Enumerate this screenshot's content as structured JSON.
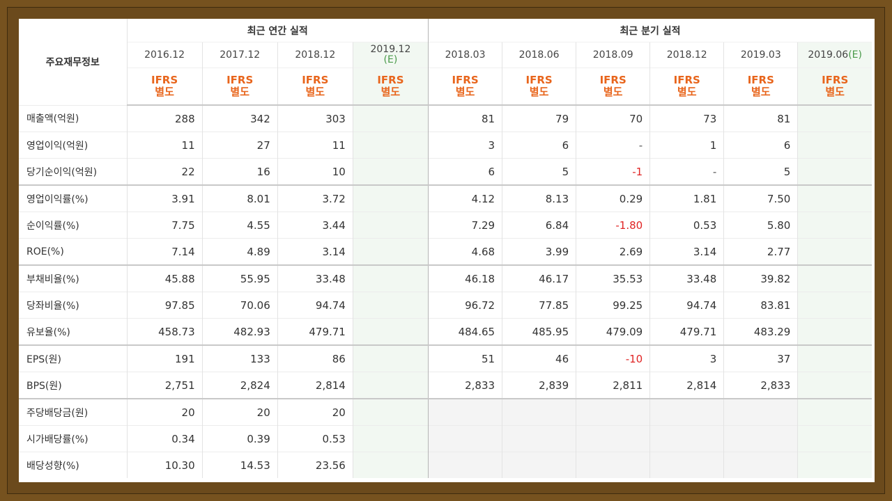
{
  "header": {
    "label_col": "주요재무정보",
    "annual_title": "최근 연간 실적",
    "quarterly_title": "최근 분기 실적",
    "annual_periods": [
      {
        "date": "2016.12",
        "est": ""
      },
      {
        "date": "2017.12",
        "est": ""
      },
      {
        "date": "2018.12",
        "est": ""
      },
      {
        "date": "2019.12",
        "est": "(E)"
      }
    ],
    "quarter_periods": [
      {
        "date": "2018.03",
        "est": ""
      },
      {
        "date": "2018.06",
        "est": ""
      },
      {
        "date": "2018.09",
        "est": ""
      },
      {
        "date": "2018.12",
        "est": ""
      },
      {
        "date": "2019.03",
        "est": ""
      },
      {
        "date": "2019.06",
        "est": "(E)"
      }
    ],
    "basis_line1": "IFRS",
    "basis_line2": "별도"
  },
  "rows": [
    {
      "label": "매출액(억원)",
      "values": [
        "288",
        "342",
        "303",
        "",
        "81",
        "79",
        "70",
        "73",
        "81",
        ""
      ]
    },
    {
      "label": "영업이익(억원)",
      "values": [
        "11",
        "27",
        "11",
        "",
        "3",
        "6",
        "-",
        "1",
        "6",
        ""
      ]
    },
    {
      "label": "당기순이익(억원)",
      "values": [
        "22",
        "16",
        "10",
        "",
        "6",
        "5",
        "-1",
        "-",
        "5",
        ""
      ]
    },
    {
      "label": "영업이익률(%)",
      "values": [
        "3.91",
        "8.01",
        "3.72",
        "",
        "4.12",
        "8.13",
        "0.29",
        "1.81",
        "7.50",
        ""
      ]
    },
    {
      "label": "순이익률(%)",
      "values": [
        "7.75",
        "4.55",
        "3.44",
        "",
        "7.29",
        "6.84",
        "-1.80",
        "0.53",
        "5.80",
        ""
      ]
    },
    {
      "label": "ROE(%)",
      "values": [
        "7.14",
        "4.89",
        "3.14",
        "",
        "4.68",
        "3.99",
        "2.69",
        "3.14",
        "2.77",
        ""
      ]
    },
    {
      "label": "부채비율(%)",
      "values": [
        "45.88",
        "55.95",
        "33.48",
        "",
        "46.18",
        "46.17",
        "35.53",
        "33.48",
        "39.82",
        ""
      ]
    },
    {
      "label": "당좌비율(%)",
      "values": [
        "97.85",
        "70.06",
        "94.74",
        "",
        "96.72",
        "77.85",
        "99.25",
        "94.74",
        "83.81",
        ""
      ]
    },
    {
      "label": "유보율(%)",
      "values": [
        "458.73",
        "482.93",
        "479.71",
        "",
        "484.65",
        "485.95",
        "479.09",
        "479.71",
        "483.29",
        ""
      ]
    },
    {
      "label": "EPS(원)",
      "values": [
        "191",
        "133",
        "86",
        "",
        "51",
        "46",
        "-10",
        "3",
        "37",
        ""
      ]
    },
    {
      "label": "BPS(원)",
      "values": [
        "2,751",
        "2,824",
        "2,814",
        "",
        "2,833",
        "2,839",
        "2,811",
        "2,814",
        "2,833",
        ""
      ]
    },
    {
      "label": "주당배당금(원)",
      "values": [
        "20",
        "20",
        "20",
        "",
        "",
        "",
        "",
        "",
        "",
        ""
      ]
    },
    {
      "label": "시가배당률(%)",
      "values": [
        "0.34",
        "0.39",
        "0.53",
        "",
        "",
        "",
        "",
        "",
        "",
        ""
      ]
    },
    {
      "label": "배당성향(%)",
      "values": [
        "10.30",
        "14.53",
        "23.56",
        "",
        "",
        "",
        "",
        "",
        "",
        ""
      ]
    }
  ],
  "group_starts": [
    0,
    3,
    6,
    9,
    11
  ],
  "colors": {
    "frame": "#76521f",
    "basis": "#e8651c",
    "negative": "#e02424",
    "estimate": "#4a9a4a"
  }
}
